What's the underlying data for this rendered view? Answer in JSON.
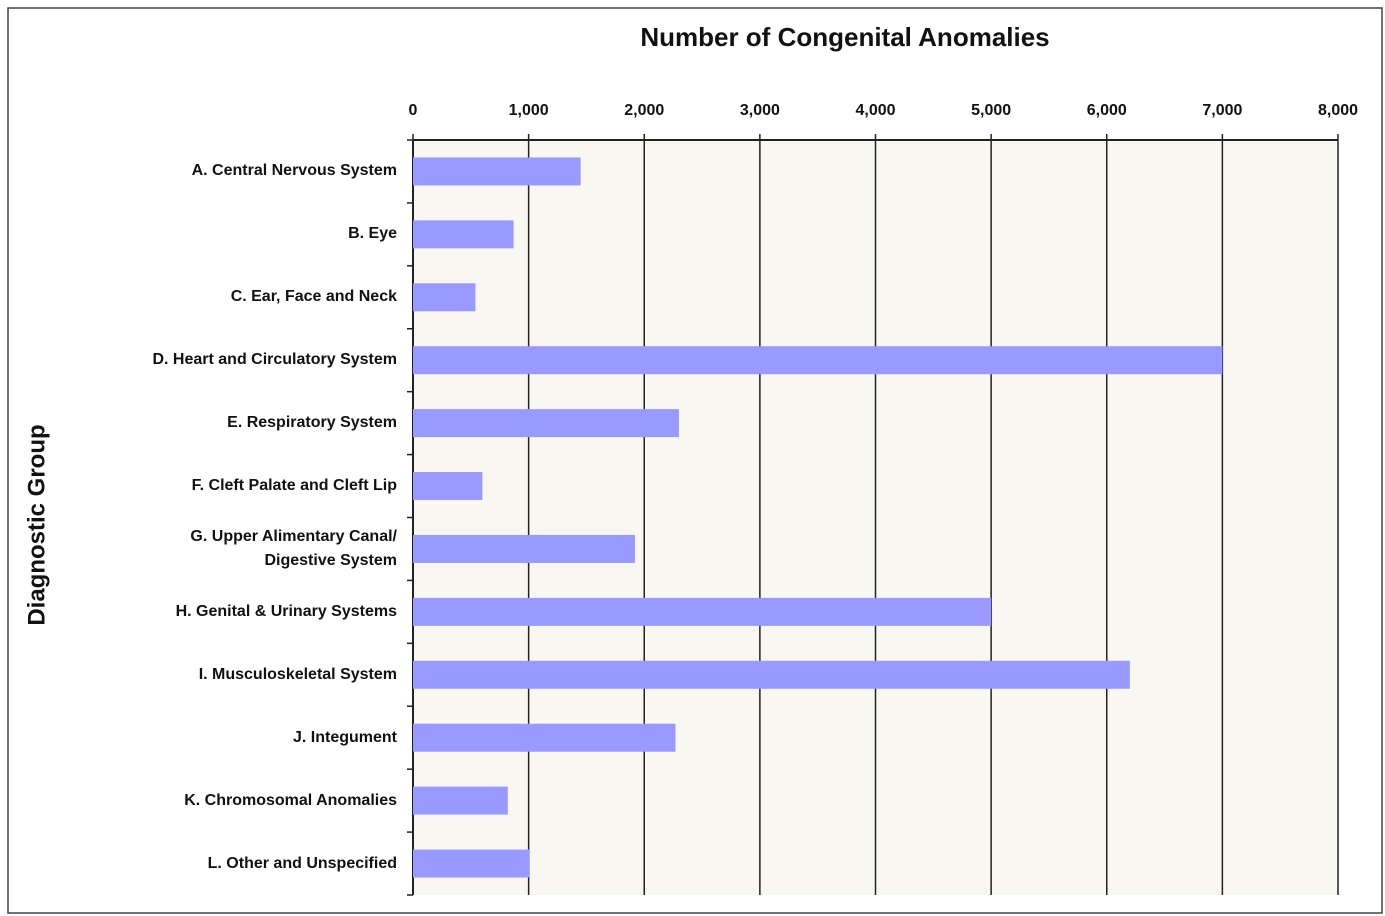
{
  "chart_data": {
    "type": "bar",
    "orientation": "horizontal",
    "title": "Number of Congenital Anomalies",
    "y_label": "Diagnostic Group",
    "categories": [
      "A. Central Nervous System",
      "B. Eye",
      "C. Ear, Face and Neck",
      "D. Heart and Circulatory System",
      "E. Respiratory System",
      "F. Cleft Palate and Cleft Lip",
      "G. Upper Alimentary Canal/\nDigestive System",
      "H. Genital & Urinary Systems",
      "I. Musculoskeletal System",
      "J. Integument",
      "K. Chromosomal Anomalies",
      "L. Other and Unspecified"
    ],
    "values": [
      1450,
      870,
      540,
      7000,
      2300,
      600,
      1920,
      5000,
      6200,
      2270,
      820,
      1010
    ],
    "color": "#9999ff",
    "xlim": [
      0,
      8000
    ],
    "xticks": [
      0,
      {
        "value": 1000,
        "label": "1,000"
      },
      {
        "value": 2000,
        "label": "2,000"
      },
      {
        "value": 3000,
        "label": "3,000"
      },
      {
        "value": 4000,
        "label": "4,000"
      },
      {
        "value": 5000,
        "label": "5,000"
      },
      {
        "value": 6000,
        "label": "6,000"
      },
      {
        "value": 7000,
        "label": "7,000"
      },
      {
        "value": 8000,
        "label": "8,000"
      }
    ],
    "grid": true
  }
}
